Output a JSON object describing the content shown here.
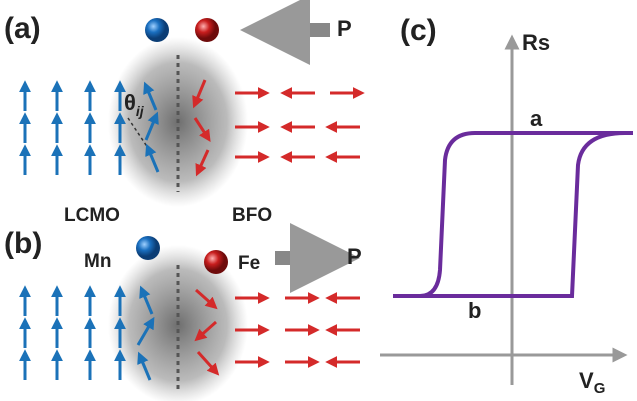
{
  "panel_a": {
    "label": "(a)",
    "polarization": "P",
    "angle": "θ",
    "angle_subscript": "ij"
  },
  "panel_b": {
    "label": "(b)",
    "left_material": "LCMO",
    "right_material": "BFO",
    "left_ion": "Mn",
    "right_ion": "Fe",
    "polarization": "P"
  },
  "panel_c": {
    "label": "(c)",
    "y_axis": "Rs",
    "x_axis": "V",
    "x_axis_subscript": "G",
    "state_high": "a",
    "state_low": "b"
  }
}
